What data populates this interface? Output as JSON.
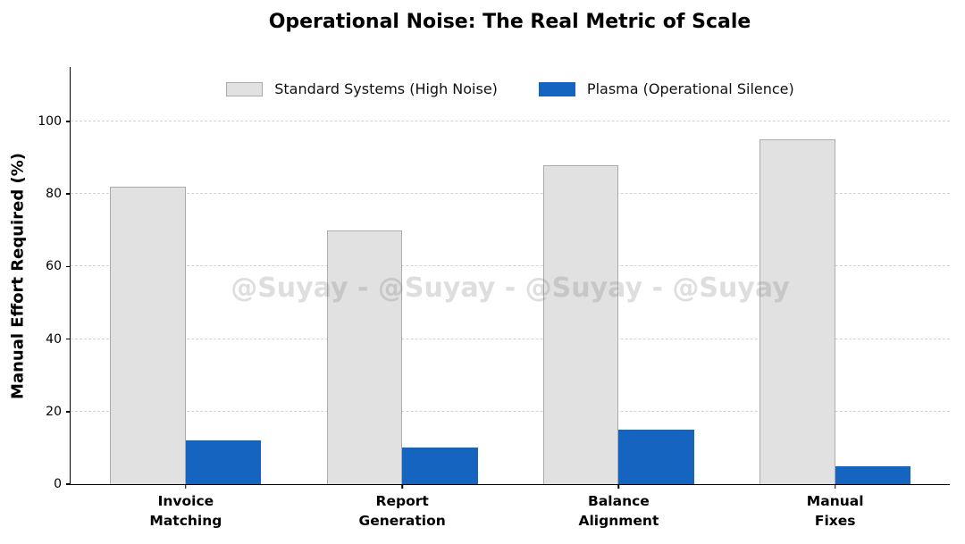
{
  "watermark": "@Suyay - @Suyay - @Suyay - @Suyay",
  "chart_data": {
    "type": "bar",
    "title": "Operational Noise: The Real Metric of Scale",
    "categories": [
      "Invoice\nMatching",
      "Report\nGeneration",
      "Balance\nAlignment",
      "Manual\nFixes"
    ],
    "series": [
      {
        "name": "Standard Systems (High Noise)",
        "values": [
          82,
          70,
          88,
          95
        ],
        "color": "#e1e1e1",
        "edge_color": "#ababab"
      },
      {
        "name": "Plasma (Operational Silence)",
        "values": [
          12,
          10,
          15,
          5
        ],
        "color": "#1565c0",
        "edge_color": "#1565c0"
      }
    ],
    "xlabel": "",
    "ylabel": "Manual Effort Required (%)",
    "ylim": [
      0,
      115
    ],
    "yticks": [
      0,
      20,
      40,
      60,
      80,
      100
    ],
    "grid": {
      "axis": "y",
      "style": "dashed",
      "color": "#d2d2d2"
    },
    "legend_position": "upper center",
    "axis_color": "#000000",
    "background": "#ffffff"
  }
}
